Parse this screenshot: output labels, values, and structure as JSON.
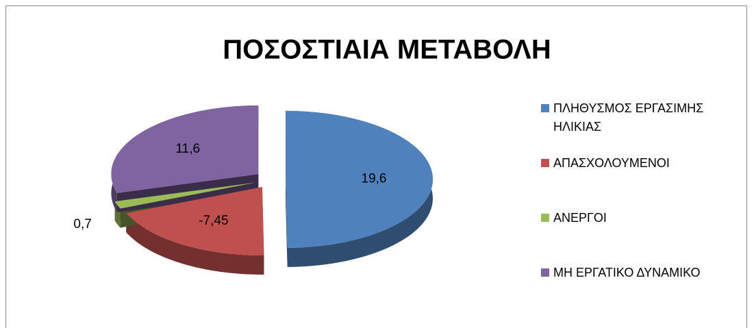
{
  "chart_data": {
    "type": "pie",
    "title": "ΠΟΣΟΣΤΙΑΙΑ ΜΕΤΑΒΟΛΗ",
    "categories": [
      "ΠΛΗΘΥΣΜΟΣ ΕΡΓΑΣΙΜΗΣ ΗΛΙΚΙΑΣ",
      "ΑΠΑΣΧΟΛΟΥΜΕΝΟΙ",
      "ΑΝΕΡΓΟΙ",
      "ΜΗ ΕΡΓΑΤΙΚΟ ΔΥΝΑΜΙΚΟ"
    ],
    "values": [
      19.6,
      -7.45,
      0.7,
      11.6
    ],
    "value_labels": [
      "19,6",
      "-7,45",
      "0,7",
      "11,6"
    ],
    "colors": [
      "#4f81bd",
      "#c0504d",
      "#9bbb59",
      "#8064a2"
    ],
    "legend": "right"
  }
}
